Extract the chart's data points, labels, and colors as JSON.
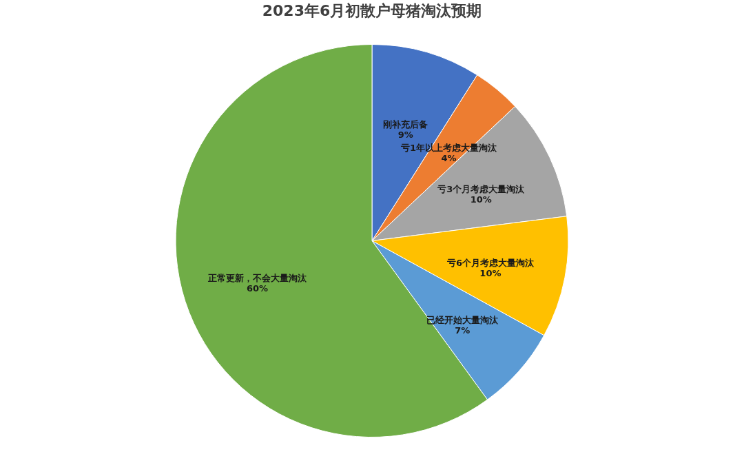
{
  "chart_data": {
    "type": "pie",
    "title": "2023年6月初散户母猪淘汰预期",
    "categories": [
      "刚补充后备",
      "亏1年以上考虑大量淘汰",
      "亏3个月考虑大量淘汰",
      "亏6个月考虑大量淘汰",
      "已经开始大量淘汰",
      "正常更新，不会大量淘汰"
    ],
    "values": [
      9,
      4,
      10,
      10,
      7,
      60
    ],
    "colors": [
      "#4472c4",
      "#ed7d31",
      "#a5a5a5",
      "#ffc000",
      "#5b9bd5",
      "#70ad47"
    ],
    "value_labels": [
      "9%",
      "4%",
      "10%",
      "10%",
      "7%",
      "60%"
    ],
    "legend": false
  }
}
